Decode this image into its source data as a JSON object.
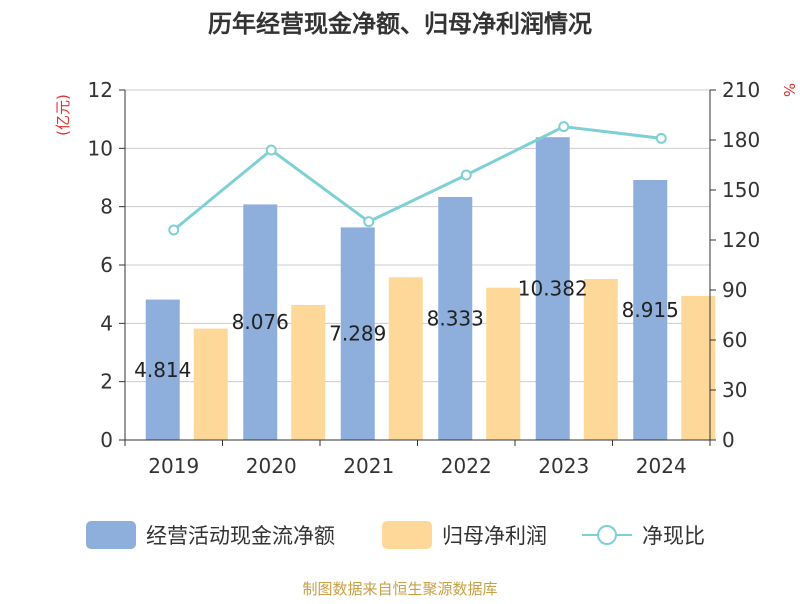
{
  "chart_data": {
    "type": "bar",
    "title": "历年经营现金净额、归母净利润情况",
    "categories": [
      "2019",
      "2020",
      "2021",
      "2022",
      "2023",
      "2024"
    ],
    "ylabel_left": "(亿元)",
    "ylabel_right": "%",
    "ylim_left": [
      0,
      12
    ],
    "yticks_left": [
      0,
      2,
      4,
      6,
      8,
      10,
      12
    ],
    "ylim_right": [
      0,
      210
    ],
    "yticks_right": [
      0,
      30,
      60,
      90,
      120,
      150,
      180,
      210
    ],
    "grid": true,
    "legend_position": "bottom",
    "series": [
      {
        "name": "经营活动现金流净额",
        "type": "bar",
        "axis": "left",
        "color": "#8eaedb",
        "values": [
          4.814,
          8.076,
          7.289,
          8.333,
          10.382,
          8.915
        ],
        "data_labels": [
          "4.814",
          "8.076",
          "7.289",
          "8.333",
          "10.382",
          "8.915"
        ]
      },
      {
        "name": "归母净利润",
        "type": "bar",
        "axis": "left",
        "color": "#fed899",
        "values": [
          3.82,
          4.63,
          5.58,
          5.22,
          5.52,
          4.94
        ]
      },
      {
        "name": "净现比",
        "type": "line",
        "axis": "right",
        "color": "#7fd0d5",
        "values": [
          126,
          174,
          131,
          159,
          188,
          181
        ]
      }
    ],
    "source_note": "制图数据来自恒生聚源数据库"
  }
}
